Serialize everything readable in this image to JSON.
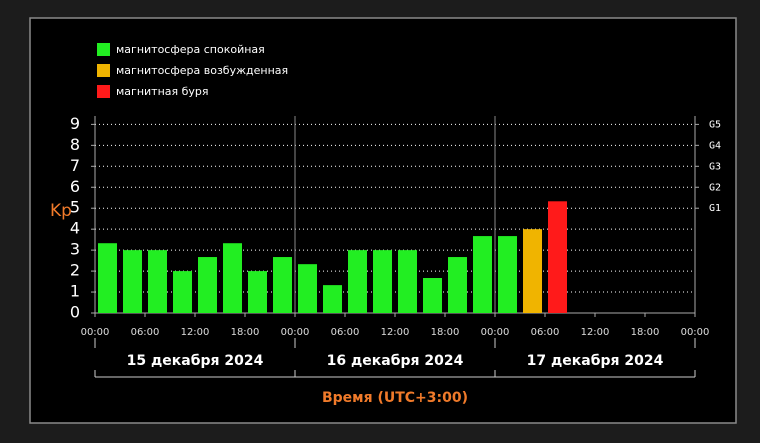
{
  "chart_data": {
    "type": "bar",
    "y_label": "Kp",
    "x_label": "Время (UTC+3:00)",
    "legend": [
      {
        "name": "магнитосфера спокойная",
        "color": "#22ee22"
      },
      {
        "name": "магнитосфера возбужденная",
        "color": "#f0b400"
      },
      {
        "name": "магнитная буря",
        "color": "#ff1a1a"
      }
    ],
    "x": [
      0,
      3,
      6,
      9,
      12,
      15,
      18,
      21,
      24,
      27,
      30,
      33,
      36,
      39,
      42,
      45,
      48,
      51,
      54
    ],
    "values": [
      3.33,
      3,
      3,
      2,
      2.67,
      3.33,
      2,
      2.67,
      2.33,
      1.33,
      3,
      3,
      3,
      1.67,
      2.67,
      3.67,
      3.67,
      4,
      5.33
    ],
    "bar_colors": [
      "#22ee22",
      "#22ee22",
      "#22ee22",
      "#22ee22",
      "#22ee22",
      "#22ee22",
      "#22ee22",
      "#22ee22",
      "#22ee22",
      "#22ee22",
      "#22ee22",
      "#22ee22",
      "#22ee22",
      "#22ee22",
      "#22ee22",
      "#22ee22",
      "#22ee22",
      "#f0b400",
      "#ff1a1a"
    ],
    "xlim": [
      0,
      72
    ],
    "ylim": [
      0,
      9.4
    ],
    "yticks": [
      0,
      1,
      2,
      3,
      4,
      5,
      6,
      7,
      8,
      9
    ],
    "y2ticks": [
      {
        "value": 5,
        "label": "G1"
      },
      {
        "value": 6,
        "label": "G2"
      },
      {
        "value": 7,
        "label": "G3"
      },
      {
        "value": 8,
        "label": "G4"
      },
      {
        "value": 9,
        "label": "G5"
      }
    ],
    "xticks": [
      {
        "value": 0,
        "label": "00:00"
      },
      {
        "value": 6,
        "label": "06:00"
      },
      {
        "value": 12,
        "label": "12:00"
      },
      {
        "value": 18,
        "label": "18:00"
      },
      {
        "value": 24,
        "label": "00:00"
      },
      {
        "value": 30,
        "label": "06:00"
      },
      {
        "value": 36,
        "label": "12:00"
      },
      {
        "value": 42,
        "label": "18:00"
      },
      {
        "value": 48,
        "label": "00:00"
      },
      {
        "value": 54,
        "label": "06:00"
      },
      {
        "value": 60,
        "label": "12:00"
      },
      {
        "value": 66,
        "label": "18:00"
      },
      {
        "value": 72,
        "label": "00:00"
      }
    ],
    "days": [
      {
        "label": "15 декабря 2024",
        "start": 0,
        "end": 24
      },
      {
        "label": "16 декабря 2024",
        "start": 24,
        "end": 48
      },
      {
        "label": "17 декабря 2024",
        "start": 48,
        "end": 72
      }
    ],
    "grid": true
  }
}
